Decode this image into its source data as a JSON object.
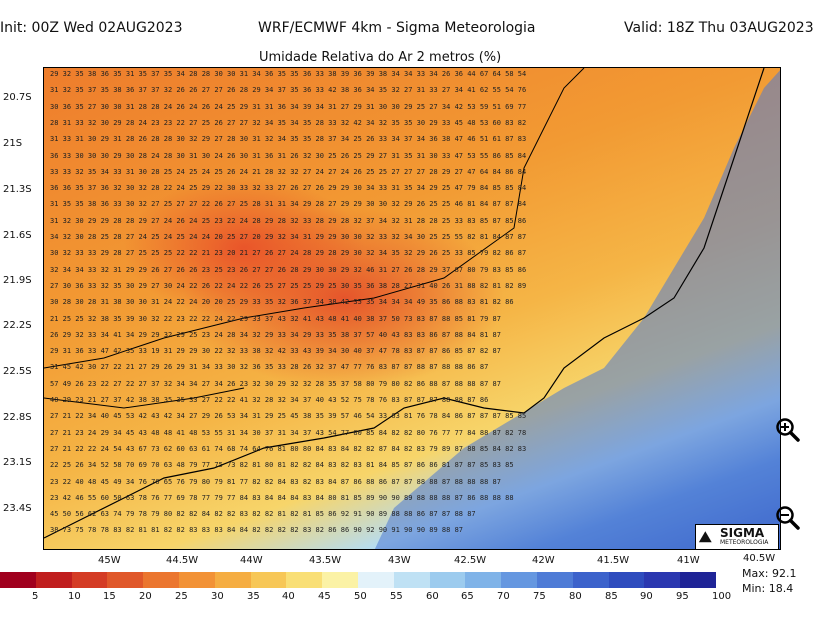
{
  "header": {
    "init": "Init: 00Z Wed 02AUG2023",
    "model": "WRF/ECMWF 4km - Sigma Meteorologia",
    "valid": "Valid: 18Z Thu 03AUG2023",
    "subtitle": "Umidade Relativa do Ar 2 metros (%)"
  },
  "axes": {
    "lat_labels": [
      "20.7S",
      "21S",
      "21.3S",
      "21.6S",
      "21.9S",
      "22.2S",
      "22.5S",
      "22.8S",
      "23.1S",
      "23.4S"
    ],
    "lon_labels": [
      "45W",
      "44.5W",
      "44W",
      "43.5W",
      "43W",
      "42.5W",
      "42W",
      "41.5W",
      "41W"
    ],
    "lon_last": "40.5W"
  },
  "colorbar": {
    "colors": [
      "#a0001e",
      "#c01e1e",
      "#d43c25",
      "#e0582a",
      "#eb762f",
      "#f29236",
      "#f5ad42",
      "#f7c757",
      "#f9df76",
      "#fbf2a5",
      "#e3f2fa",
      "#bfe1f4",
      "#9ccbee",
      "#7fb3e8",
      "#6597e0",
      "#4e7bd6",
      "#3c62cb",
      "#2e4cbe",
      "#2a37b0",
      "#1f2497"
    ],
    "labels": [
      "5",
      "10",
      "15",
      "20",
      "25",
      "30",
      "35",
      "40",
      "45",
      "50",
      "55",
      "60",
      "65",
      "70",
      "75",
      "80",
      "85",
      "90",
      "95",
      "100"
    ]
  },
  "stats": {
    "max": "Max: 92.1",
    "min": "Min: 18.4"
  },
  "logo": {
    "name": "SIGMA",
    "sub": "METEOROLOGIA"
  },
  "grid_rows": [
    "29 32 35 38 36 35 31 35 37 35 34 28 28 30 30 31 34 36 35 35 36 33 38 39 36 39 38 34 34 33 34 26 36 44 67 64 58 54",
    "31 32 35 37 35 38 36 37 37 32 26 26 27 27 26 28 29 34 37 35 36 33 42 38 36 34 35 32 27 31 33 27 34 41 62 55 54 76",
    "30 36 35 27 30 30 31 28 28 24 26 24 26 24 25 29 31 31 36 34 39 34 31 27 29 31 30 30 29 25 27 34 42 53 59 51 69 77",
    "28 31 33 32 30 29 28 24 23 23 22 27 25 26 27 27 32 34 35 34 35 28 33 32 42 34 32 35 35 30 29 33 45 48 53 60 83 82",
    "31 33 31 30 29 31 28 26 28 28 30 32 29 27 28 30 31 32 34 35 35 28 37 34 25 26 33 34 37 34 36 38 47 46 51 61 87 83",
    "36 33 30 30 30 29 30 28 24 28 30 31 30 24 26 30 31 36 31 26 32 30 25 26 25 29 27 31 35 31 30 33 47 53 55 86 85 84",
    "33 33 32 35 34 33 31 30 28 25 24 25 24 25 26 24 21 28 32 32 27 24 27 24 26 25 25 27 27 27 28 29 27 47 64 84 86 84",
    "36 36 35 37 36 32 30 32 28 22 24 25 29 22 30 33 32 33 27 26 27 26 29 29 30 34 33 31 35 34 29 25 47 79 84 85 85 84",
    "31 35 35 38 36 33 30 32 27 25 27 27 22 26 27 25 28 31 31 34 29 28 27 29 29 30 30 32 29 26 25 25 46 81 84 87 87 84",
    "31 32 30 29 29 28 28 29 27 24 26 24 25 23 22 24 28 29 28 32 33 28 29 28 32 37 34 32 31 28 28 25 33 83 85 87 85 86",
    "34 32 30 28 25 28 27 24 25 24 25 24 24 20 25 27 20 29 32 34 31 29 29 30 30 32 33 32 34 30 25 25 55 82 81 84 87 87",
    "30 32 33 33 29 28 27 25 25 25 22 22 21 23 20 21 27 26 27 24 28 29 28 29 30 32 34 35 32 29 26 25 33 85 79 82 86 87",
    "32 34 34 33 32 31 29 29 26 27 26 26 23 25 23 26 27 27 26 28 29 30 30 29 32 46 31 27 26 28 29 37 87 80 79 83 85 86",
    "27 30 36 33 32 35 30 29 27 30 24 22 26 22 24 22 26 25 27 25 25 29 25 30 35 36 38 28 27 31 40 26 31 88 82 81 82 89",
    "30 28 30 28 31 38 30 30 31 24 22 24 20 20 25 29 33 35 32 36 37 34 38 42 35 35 34 34 34 49 35 86 88 83 81 82 86",
    "21 25 25 32 38 35 39 30 32 22 23 22 22 24 22 29 33 37 43 32 41 43 48 41 40 38 37 50 73 83 87 88 85 81 79 87",
    "26 29 32 33 34 41 34 29 29 32 29 25 23 24 28 34 32 29 33 34 29 33 35 38 37 57 40 43 83 83 86 87 88 84 81 87",
    "29 31 36 33 47 42 35 33 19 31 29 29 30 22 32 33 38 32 42 33 43 39 34 30 40 37 47 78 83 87 87 86 85 87 82 87",
    "31 45 42 30 27 22 21 27 29 26 29 31 34 33 30 32 36 35 33 28 26 32 37 47 77 76 83 87 87 88 87 88 88 86 87",
    "57 49 26 23 22 27 22 27 37 32 34 34 27 34 26 23 32 30 29 32 32 28 35 37 58 80 79 80 82 86 88 87 88 88 87 87",
    "40 29 23 21 27 37 42 38 38 35 35 33 27 22 22 41 32 28 32 34 37 40 43 52 75 78 76 83 87 87 87 88 88 87 86",
    "27 21 22 34 40 45 53 42 43 42 34 27 29 26 53 34 31 29 25 45 38 35 39 57 46 54 33 63 81 76 78 84 86 87 87 87 85 85",
    "27 21 23 24 29 34 45 43 48 48 41 48 53 55 31 34 30 37 31 34 37 43 54 77 80 85 84 82 82 80 76 77 77 84 88 87 82 78",
    "27 21 22 22 24 54 43 67 73 62 60 63 61 74 68 74 64 76 81 80 80 84 83 84 82 82 87 84 82 83 79 89 87 88 85 84 82 83",
    "22 25 26 34 52 58 70 69 70 63 48 79 77 75 73 82 81 80 81 82 82 84 83 82 83 81 84 85 87 86 86 81 87 87 85 83 85",
    "23 22 40 48 45 49 34 76 70 65 76 79 80 79 81 77 82 82 84 83 82 83 84 87 86 88 86 87 87 88 88 87 88 88 88 87",
    "23 42 46 55 60 50 63 78 76 77 69 78 77 79 77 84 83 84 84 84 83 84 80 81 85 89 90 90 89 88 88 88 87 86 88 88 88",
    "45 50 56 62 63 74 79 78 79 80 82 82 84 82 82 83 82 82 81 82 81 85 86 92 91 90 89 88 88 86 87 87 88 87",
    "38 73 75 78 78 83 82 81 81 82 82 83 83 83 84 84 82 82 82 82 83 82 86 86 90 92 90 91 90 90 89 88 87"
  ]
}
